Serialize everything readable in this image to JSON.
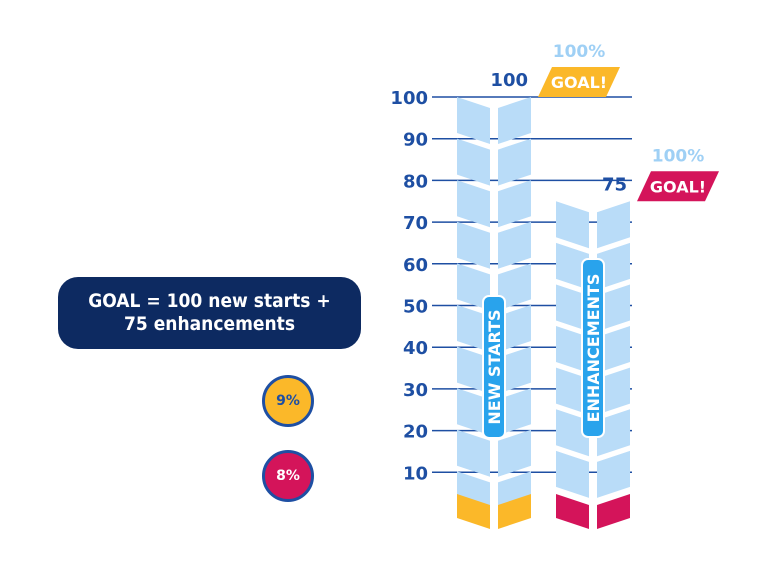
{
  "goal_note": {
    "line1": "GOAL = 100 new starts +",
    "line2": "75 enhancements"
  },
  "badges": [
    {
      "label": "9%",
      "color": "#fbb829"
    },
    {
      "label": "8%",
      "color": "#d4145a"
    }
  ],
  "chart_data": {
    "type": "bar",
    "title": "",
    "xlabel": "",
    "ylabel": "",
    "ylim": [
      0,
      100
    ],
    "yticks": [
      10,
      20,
      30,
      40,
      50,
      60,
      70,
      80,
      90,
      100
    ],
    "grid": true,
    "series": [
      {
        "name": "NEW STARTS",
        "goal": 100,
        "progress_pct": 9,
        "goal_pct_label": "100%",
        "goal_label": "GOAL!",
        "value_label": "100",
        "bar_color": "#b9dcf8",
        "progress_color": "#fbb829",
        "flag_color": "#fbb829",
        "flag_text_color": "#ffffff"
      },
      {
        "name": "ENHANCEMENTS",
        "goal": 75,
        "progress_pct": 8,
        "goal_pct_label": "100%",
        "goal_label": "GOAL!",
        "value_label": "75",
        "bar_color": "#b9dcf8",
        "progress_color": "#d4145a",
        "flag_color": "#d4145a",
        "flag_text_color": "#ffffff"
      }
    ],
    "colors": {
      "axis_text": "#1e4fa3",
      "grid": "#1e4fa3",
      "pct_label": "#9fd0f5"
    }
  }
}
